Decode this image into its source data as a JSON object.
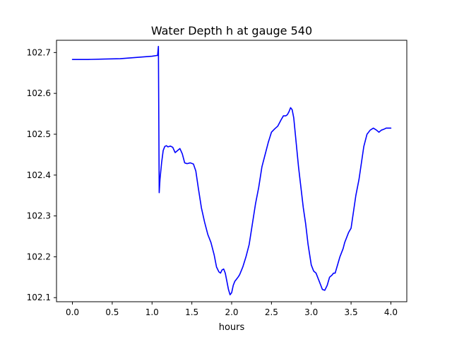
{
  "chart_data": {
    "type": "line",
    "title": "Water Depth h at gauge 540",
    "xlabel": "hours",
    "ylabel": "",
    "xlim": [
      -0.2,
      4.2
    ],
    "ylim": [
      102.09,
      102.73
    ],
    "x_ticks": [
      0.0,
      0.5,
      1.0,
      1.5,
      2.0,
      2.5,
      3.0,
      3.5,
      4.0
    ],
    "x_tick_labels": [
      "0.0",
      "0.5",
      "1.0",
      "1.5",
      "2.0",
      "2.5",
      "3.0",
      "3.5",
      "4.0"
    ],
    "y_ticks": [
      102.1,
      102.2,
      102.3,
      102.4,
      102.5,
      102.6,
      102.7
    ],
    "y_tick_labels": [
      "102.1",
      "102.2",
      "102.3",
      "102.4",
      "102.5",
      "102.6",
      "102.7"
    ],
    "grid": false,
    "series": [
      {
        "color": "#0000ff",
        "x": [
          0.0,
          0.2,
          0.4,
          0.6,
          0.8,
          1.0,
          1.07,
          1.08,
          1.09,
          1.1,
          1.12,
          1.14,
          1.16,
          1.18,
          1.2,
          1.23,
          1.26,
          1.29,
          1.32,
          1.35,
          1.38,
          1.41,
          1.44,
          1.48,
          1.52,
          1.55,
          1.58,
          1.62,
          1.66,
          1.7,
          1.74,
          1.78,
          1.81,
          1.84,
          1.86,
          1.88,
          1.9,
          1.92,
          1.94,
          1.96,
          1.98,
          2.0,
          2.02,
          2.04,
          2.06,
          2.08,
          2.1,
          2.14,
          2.18,
          2.22,
          2.26,
          2.3,
          2.34,
          2.38,
          2.42,
          2.46,
          2.5,
          2.54,
          2.58,
          2.62,
          2.65,
          2.68,
          2.7,
          2.72,
          2.74,
          2.76,
          2.78,
          2.8,
          2.82,
          2.84,
          2.87,
          2.9,
          2.93,
          2.96,
          3.0,
          3.03,
          3.06,
          3.08,
          3.1,
          3.12,
          3.14,
          3.17,
          3.2,
          3.23,
          3.26,
          3.28,
          3.3,
          3.33,
          3.36,
          3.4,
          3.42,
          3.44,
          3.47,
          3.5,
          3.53,
          3.56,
          3.6,
          3.63,
          3.66,
          3.7,
          3.74,
          3.78,
          3.82,
          3.85,
          3.88,
          3.91,
          3.94,
          3.97,
          4.0
        ],
        "y": [
          102.683,
          102.683,
          102.684,
          102.685,
          102.688,
          102.691,
          102.693,
          102.715,
          102.357,
          102.39,
          102.43,
          102.46,
          102.47,
          102.472,
          102.469,
          102.471,
          102.468,
          102.455,
          102.46,
          102.465,
          102.452,
          102.43,
          102.428,
          102.43,
          102.427,
          102.41,
          102.37,
          102.32,
          102.285,
          102.255,
          102.235,
          102.205,
          102.175,
          102.163,
          102.16,
          102.168,
          102.17,
          102.16,
          102.14,
          102.12,
          102.107,
          102.112,
          102.13,
          102.14,
          102.145,
          102.15,
          102.156,
          102.175,
          102.2,
          102.23,
          102.28,
          102.33,
          102.37,
          102.42,
          102.45,
          102.48,
          102.505,
          102.513,
          102.52,
          102.535,
          102.545,
          102.545,
          102.548,
          102.555,
          102.565,
          102.56,
          102.54,
          102.5,
          102.46,
          102.42,
          102.37,
          102.32,
          102.28,
          102.23,
          102.18,
          102.165,
          102.16,
          102.15,
          102.14,
          102.13,
          102.12,
          102.118,
          102.13,
          102.15,
          102.155,
          102.16,
          102.16,
          102.18,
          102.2,
          102.22,
          102.235,
          102.245,
          102.26,
          102.27,
          102.31,
          102.35,
          102.39,
          102.43,
          102.47,
          102.5,
          102.51,
          102.515,
          102.51,
          102.505,
          102.51,
          102.512,
          102.515,
          102.515,
          102.515
        ]
      }
    ]
  }
}
